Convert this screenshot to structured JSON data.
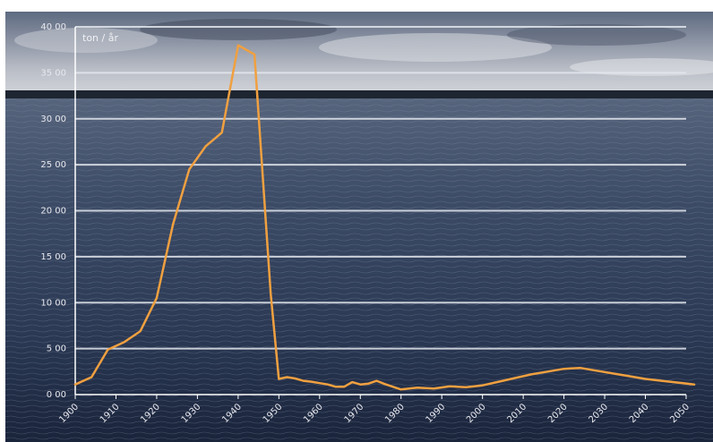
{
  "chart_data": {
    "type": "line",
    "title": "",
    "unit_label": "ton / år",
    "xlabel": "",
    "ylabel": "",
    "x_tick_labels": [
      "1900",
      "1910",
      "1920",
      "1930",
      "1940",
      "1950",
      "1960",
      "1970",
      "1980",
      "1990",
      "2000",
      "2010",
      "2020",
      "2030",
      "2040",
      "2050"
    ],
    "y_tick_labels": [
      "0 00",
      "5 00",
      "10 00",
      "15 00",
      "20 00",
      "25 00",
      "30 00",
      "35 00",
      "40 00"
    ],
    "ylim": [
      0,
      4000
    ],
    "grid": true,
    "colors": {
      "line": "#f0a040",
      "grid": "#e4e8ee",
      "axis": "#ffffff"
    },
    "series": [
      {
        "x": [
          1900,
          1904,
          1908,
          1912,
          1916,
          1920,
          1924,
          1928,
          1932,
          1936,
          1940,
          1944,
          1948,
          1950,
          1952,
          1954,
          1956,
          1958,
          1960,
          1962,
          1964,
          1966,
          1968,
          1970,
          1972,
          1974,
          1976,
          1980,
          1984,
          1988,
          1992,
          1996,
          2000,
          2004,
          2008,
          2012,
          2016,
          2020,
          2024,
          2028,
          2032,
          2036,
          2040,
          2044,
          2048,
          2052
        ],
        "y": [
          110,
          190,
          490,
          570,
          690,
          1050,
          1850,
          2450,
          2700,
          2850,
          3800,
          3700,
          1100,
          170,
          190,
          175,
          150,
          140,
          125,
          110,
          85,
          85,
          135,
          110,
          120,
          150,
          115,
          55,
          75,
          65,
          90,
          80,
          100,
          140,
          180,
          220,
          250,
          280,
          290,
          260,
          230,
          200,
          170,
          150,
          130,
          110
        ]
      }
    ]
  }
}
